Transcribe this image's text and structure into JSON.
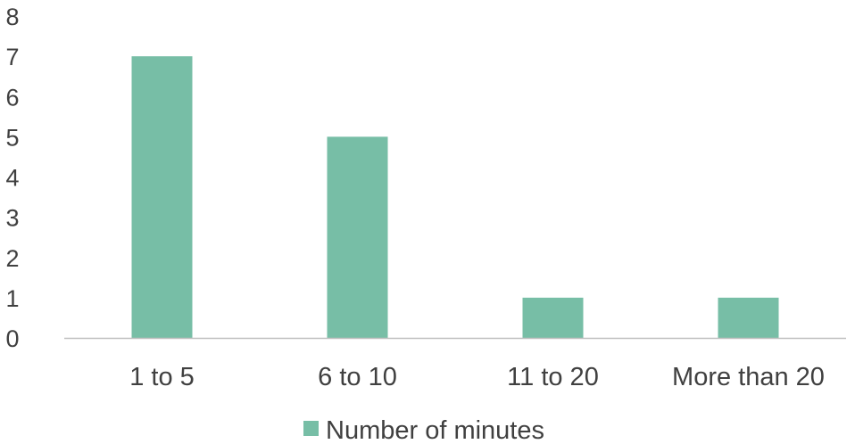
{
  "chart_data": {
    "type": "bar",
    "categories": [
      "1 to 5",
      "6 to 10",
      "11 to 20",
      "More than 20"
    ],
    "series": [
      {
        "name": "Number of minutes",
        "values": [
          7,
          5,
          1,
          1
        ],
        "color": "#77bea6"
      }
    ],
    "ylim": [
      0,
      8
    ],
    "yticks": [
      "0",
      "1",
      "2",
      "3",
      "4",
      "5",
      "6",
      "7",
      "8"
    ],
    "grid": false,
    "legend_position": "bottom",
    "axis_color": "#bfbfbf",
    "text_color": "#404040"
  }
}
